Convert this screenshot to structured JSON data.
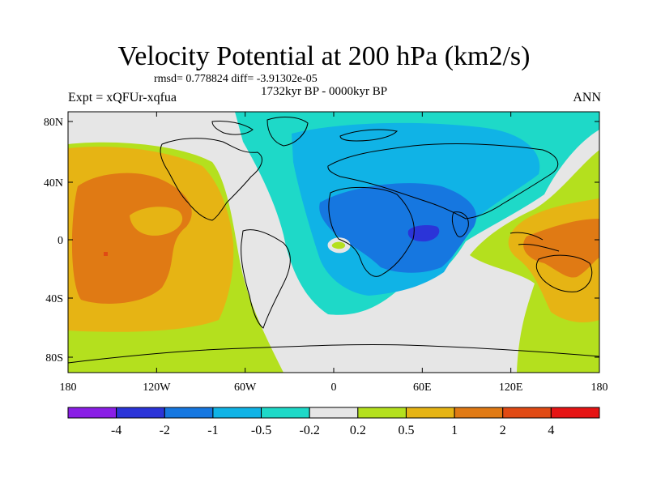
{
  "header": {
    "title": "Velocity Potential at 200 hPa (km2/s)",
    "stats": "rmsd= 0.778824 diff= -3.91302e-05",
    "period": "1732kyr BP - 0000kyr BP",
    "experiment": "Expt = xQFUr-xqfua",
    "season": "ANN"
  },
  "axes": {
    "y_ticks": [
      "80N",
      "40N",
      "0",
      "40S",
      "80S"
    ],
    "x_ticks": [
      "180",
      "120W",
      "60W",
      "0",
      "60E",
      "120E",
      "180"
    ]
  },
  "colorbar": {
    "labels": [
      "-4",
      "-2",
      "-1",
      "-0.5",
      "-0.2",
      "0.2",
      "0.5",
      "1",
      "2",
      "4"
    ],
    "colors": [
      "#8a1ee6",
      "#2b34d8",
      "#1677e0",
      "#10b3e6",
      "#1ed9c8",
      "#e6e6e6",
      "#b4e01e",
      "#e6b414",
      "#e07a14",
      "#e04a14",
      "#e61414"
    ]
  },
  "map_colors": {
    "ocean_neutral": "#e6e6e6",
    "coast": "#000000"
  }
}
